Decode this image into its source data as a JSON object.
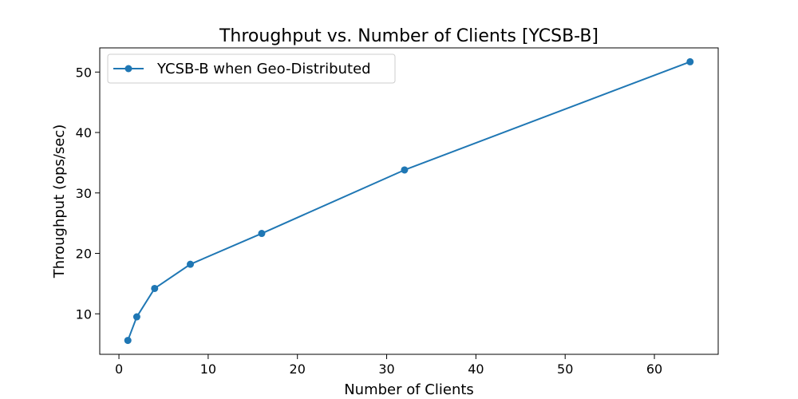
{
  "chart_data": {
    "type": "line",
    "title": "Throughput vs. Number of Clients [YCSB-B]",
    "xlabel": "Number of Clients",
    "ylabel": "Throughput (ops/sec)",
    "xlim": [
      -2.15,
      67.15
    ],
    "ylim": [
      3.3,
      54.0
    ],
    "xticks": [
      0,
      10,
      20,
      30,
      40,
      50,
      60
    ],
    "yticks": [
      10,
      20,
      30,
      40,
      50
    ],
    "grid": false,
    "legend_position": "top-left",
    "series": [
      {
        "name": "YCSB-B when Geo-Distributed",
        "color": "#1f77b4",
        "x": [
          1,
          2,
          4,
          8,
          16,
          32,
          64
        ],
        "y": [
          5.6,
          9.5,
          14.2,
          18.2,
          23.3,
          33.8,
          51.7
        ]
      }
    ]
  }
}
